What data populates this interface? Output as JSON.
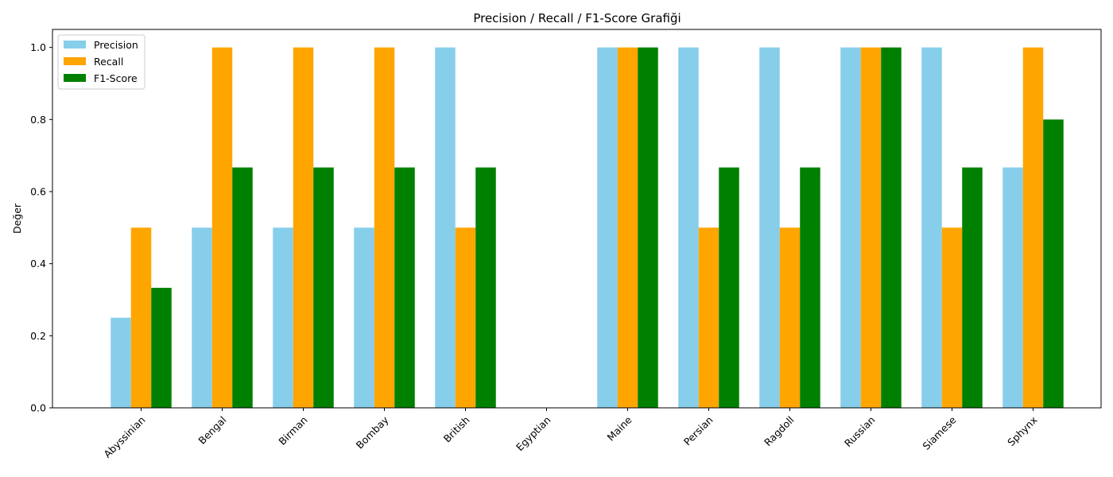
{
  "chart_data": {
    "type": "bar",
    "title": "Precision / Recall / F1-Score Grafiği",
    "xlabel": "",
    "ylabel": "Değer",
    "ylim": [
      0,
      1.05
    ],
    "yticks": [
      "0.0",
      "0.2",
      "0.4",
      "0.6",
      "0.8",
      "1.0"
    ],
    "grid": false,
    "legend_position": "top-left",
    "categories": [
      "Abyssinian",
      "Bengal",
      "Birman",
      "Bombay",
      "British",
      "Egyptian",
      "Maine",
      "Persian",
      "Ragdoll",
      "Russian",
      "Siamese",
      "Sphynx"
    ],
    "series": [
      {
        "name": "Precision",
        "color": "#87ceeb",
        "values": [
          0.25,
          0.5,
          0.5,
          0.5,
          1.0,
          0.0,
          1.0,
          1.0,
          1.0,
          1.0,
          1.0,
          0.667
        ]
      },
      {
        "name": "Recall",
        "color": "#ffa500",
        "values": [
          0.5,
          1.0,
          1.0,
          1.0,
          0.5,
          0.0,
          1.0,
          0.5,
          0.5,
          1.0,
          0.5,
          1.0
        ]
      },
      {
        "name": "F1-Score",
        "color": "#008000",
        "values": [
          0.333,
          0.667,
          0.667,
          0.667,
          0.667,
          0.0,
          1.0,
          0.667,
          0.667,
          1.0,
          0.667,
          0.8
        ]
      }
    ]
  }
}
